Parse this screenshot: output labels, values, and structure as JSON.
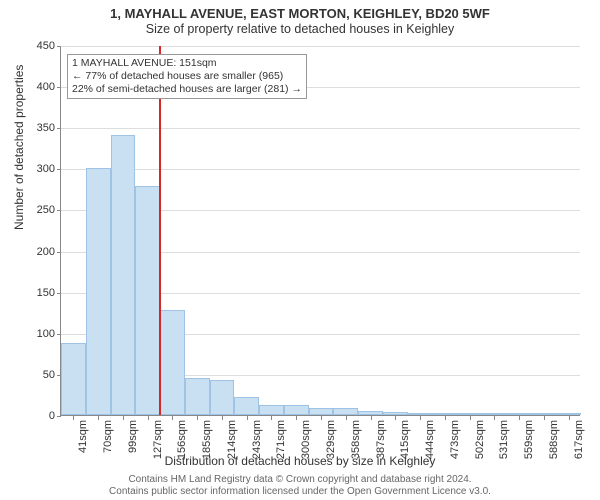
{
  "title": {
    "line1": "1, MAYHALL AVENUE, EAST MORTON, KEIGHLEY, BD20 5WF",
    "line2": "Size of property relative to detached houses in Keighley"
  },
  "chart": {
    "type": "histogram",
    "bar_fill": "#c9dff2",
    "bar_border": "#9ec3e4",
    "grid_color": "#dddddd",
    "axis_color": "#888888",
    "marker_color": "#d62728",
    "background": "#ffffff",
    "ylim": [
      0,
      450
    ],
    "ytick_step": 50,
    "ylabel": "Number of detached properties",
    "xlabel": "Distribution of detached houses by size in Keighley",
    "bins": [
      {
        "label": "41sqm",
        "count": 88
      },
      {
        "label": "70sqm",
        "count": 300
      },
      {
        "label": "99sqm",
        "count": 340
      },
      {
        "label": "127sqm",
        "count": 278
      },
      {
        "label": "156sqm",
        "count": 128
      },
      {
        "label": "185sqm",
        "count": 45
      },
      {
        "label": "214sqm",
        "count": 42
      },
      {
        "label": "243sqm",
        "count": 22
      },
      {
        "label": "271sqm",
        "count": 12
      },
      {
        "label": "300sqm",
        "count": 12
      },
      {
        "label": "329sqm",
        "count": 8
      },
      {
        "label": "358sqm",
        "count": 9
      },
      {
        "label": "387sqm",
        "count": 5
      },
      {
        "label": "415sqm",
        "count": 4
      },
      {
        "label": "444sqm",
        "count": 2
      },
      {
        "label": "473sqm",
        "count": 2
      },
      {
        "label": "502sqm",
        "count": 2
      },
      {
        "label": "531sqm",
        "count": 0
      },
      {
        "label": "559sqm",
        "count": 1
      },
      {
        "label": "588sqm",
        "count": 1
      },
      {
        "label": "617sqm",
        "count": 1
      }
    ],
    "marker_bin_index": 3,
    "annotation": {
      "line1": "1 MAYHALL AVENUE: 151sqm",
      "line2": "← 77% of detached houses are smaller (965)",
      "line3": "22% of semi-detached houses are larger (281) →"
    }
  },
  "footer": {
    "line1": "Contains HM Land Registry data © Crown copyright and database right 2024.",
    "line2": "Contains public sector information licensed under the Open Government Licence v3.0."
  }
}
